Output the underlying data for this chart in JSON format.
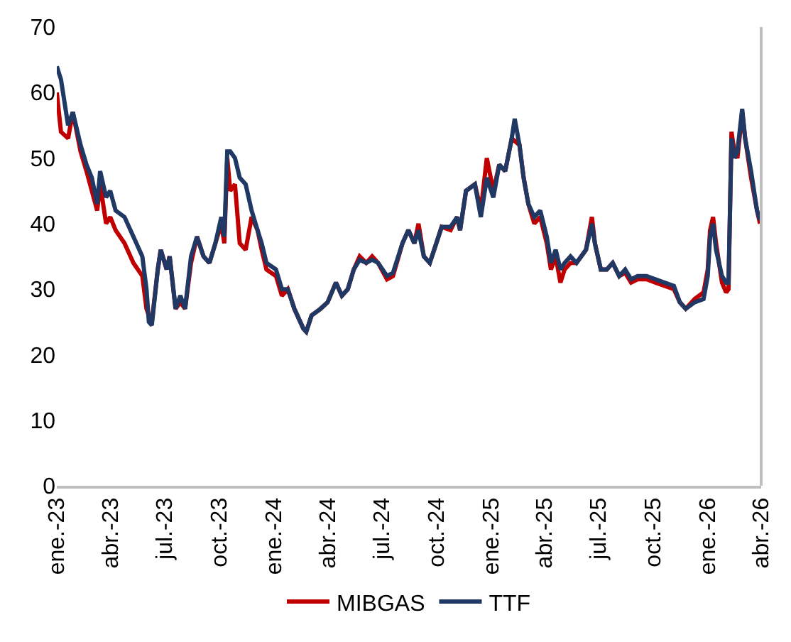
{
  "chart_data": {
    "type": "line",
    "x": [
      "2023-01-01",
      "2023-01-08",
      "2023-01-20",
      "2023-01-28",
      "2023-02-10",
      "2023-02-20",
      "2023-03-01",
      "2023-03-10",
      "2023-03-15",
      "2023-03-25",
      "2023-04-01",
      "2023-04-10",
      "2023-04-25",
      "2023-05-10",
      "2023-05-25",
      "2023-06-01",
      "2023-06-05",
      "2023-06-10",
      "2023-06-20",
      "2023-06-25",
      "2023-07-05",
      "2023-07-10",
      "2023-07-20",
      "2023-07-28",
      "2023-08-05",
      "2023-08-15",
      "2023-08-25",
      "2023-09-05",
      "2023-09-15",
      "2023-09-25",
      "2023-10-05",
      "2023-10-10",
      "2023-10-15",
      "2023-10-20",
      "2023-10-28",
      "2023-11-05",
      "2023-11-15",
      "2023-11-25",
      "2023-12-05",
      "2023-12-12",
      "2023-12-20",
      "2024-01-05",
      "2024-01-15",
      "2024-01-25",
      "2024-02-05",
      "2024-02-20",
      "2024-02-25",
      "2024-03-05",
      "2024-03-20",
      "2024-04-01",
      "2024-04-15",
      "2024-04-25",
      "2024-05-05",
      "2024-05-15",
      "2024-05-25",
      "2024-06-05",
      "2024-06-15",
      "2024-06-25",
      "2024-07-10",
      "2024-07-20",
      "2024-08-05",
      "2024-08-15",
      "2024-08-25",
      "2024-09-01",
      "2024-09-10",
      "2024-09-20",
      "2024-10-01",
      "2024-10-10",
      "2024-10-25",
      "2024-11-05",
      "2024-11-10",
      "2024-11-20",
      "2024-12-05",
      "2024-12-15",
      "2024-12-25",
      "2025-01-05",
      "2025-01-15",
      "2025-01-25",
      "2025-02-05",
      "2025-02-10",
      "2025-02-18",
      "2025-02-25",
      "2025-03-05",
      "2025-03-15",
      "2025-03-25",
      "2025-04-05",
      "2025-04-12",
      "2025-04-20",
      "2025-04-28",
      "2025-05-05",
      "2025-05-15",
      "2025-05-25",
      "2025-06-10",
      "2025-06-20",
      "2025-06-25",
      "2025-07-05",
      "2025-07-15",
      "2025-07-25",
      "2025-08-05",
      "2025-08-15",
      "2025-08-25",
      "2025-09-05",
      "2025-09-20",
      "2025-10-05",
      "2025-10-20",
      "2025-11-05",
      "2025-11-15",
      "2025-11-25",
      "2025-12-10",
      "2025-12-25",
      "2026-01-01",
      "2026-01-05",
      "2026-01-10",
      "2026-01-15",
      "2026-01-25",
      "2026-02-01",
      "2026-02-05",
      "2026-02-10",
      "2026-02-15",
      "2026-02-20",
      "2026-02-28",
      "2026-03-05",
      "2026-03-15",
      "2026-03-25",
      "2026-03-30"
    ],
    "series": [
      {
        "name": "MIBGAS",
        "color": "#c00000",
        "values": [
          60,
          54,
          53,
          57,
          51,
          48,
          45,
          42,
          46,
          40,
          41,
          39,
          37,
          34,
          32,
          27,
          26,
          25,
          33,
          36,
          33,
          35,
          27,
          28,
          27,
          34,
          38,
          35,
          34,
          37,
          40,
          37,
          50,
          45,
          46,
          37,
          36,
          41,
          39,
          36,
          33,
          32,
          29,
          30,
          27,
          24,
          23.5,
          26,
          27,
          28,
          31,
          29,
          30,
          33,
          35,
          34,
          35,
          34,
          31.5,
          32,
          37,
          39,
          37,
          40,
          35,
          34,
          37,
          39.5,
          39,
          41,
          39,
          45,
          46,
          42,
          50,
          45,
          49,
          48,
          53,
          null,
          52,
          47,
          43,
          40,
          41,
          37,
          33,
          35,
          31,
          33,
          34,
          34,
          36,
          41,
          37,
          33,
          33,
          34,
          32,
          32.5,
          31,
          31.5,
          31.5,
          31,
          30.5,
          30,
          28,
          27,
          28.5,
          29.5,
          33,
          39,
          41,
          37,
          31,
          29.5,
          30,
          54,
          51,
          50,
          57,
          53,
          47,
          42,
          40
        ]
      },
      {
        "name": "TTF",
        "color": "#203864",
        "values": [
          64,
          62,
          55,
          57,
          52,
          49,
          47,
          43,
          48,
          44,
          45,
          42,
          41,
          38,
          35,
          30,
          25,
          24.5,
          33,
          36,
          33,
          35,
          27,
          29,
          27,
          35,
          38,
          35,
          34,
          37,
          41,
          38,
          51,
          51,
          50,
          47,
          46,
          42,
          39,
          37,
          34,
          33,
          30,
          30,
          27,
          24,
          23.5,
          26,
          27,
          28,
          31,
          29,
          30,
          33,
          34.5,
          34,
          34.5,
          34,
          32,
          32.5,
          37,
          39,
          37,
          39,
          35,
          34,
          37,
          39.5,
          39.5,
          41,
          39,
          45,
          46,
          41,
          47,
          44,
          49,
          48,
          53,
          56,
          52,
          47,
          43,
          41,
          42,
          38,
          34,
          36,
          33,
          34,
          35,
          34,
          36,
          40,
          37,
          33,
          33,
          34,
          32,
          33,
          31.5,
          32,
          32,
          31.5,
          31,
          30.5,
          28,
          27,
          28,
          28.5,
          32,
          38,
          40,
          36,
          32,
          31,
          31,
          53,
          50,
          51,
          57.5,
          53,
          48,
          42,
          40.5
        ]
      }
    ],
    "xlim": [
      "2023-01-01",
      "2026-04-01"
    ],
    "xticks": [
      {
        "value": "2023-01-01",
        "label": "ene.-23"
      },
      {
        "value": "2023-04-01",
        "label": "abr.-23"
      },
      {
        "value": "2023-07-01",
        "label": "jul.-23"
      },
      {
        "value": "2023-10-01",
        "label": "oct.-23"
      },
      {
        "value": "2024-01-01",
        "label": "ene.-24"
      },
      {
        "value": "2024-04-01",
        "label": "abr.-24"
      },
      {
        "value": "2024-07-01",
        "label": "jul.-24"
      },
      {
        "value": "2024-10-01",
        "label": "oct.-24"
      },
      {
        "value": "2025-01-01",
        "label": "ene.-25"
      },
      {
        "value": "2025-04-01",
        "label": "abr.-25"
      },
      {
        "value": "2025-07-01",
        "label": "jul.-25"
      },
      {
        "value": "2025-10-01",
        "label": "oct.-25"
      },
      {
        "value": "2026-01-01",
        "label": "ene.-26"
      },
      {
        "value": "2026-04-01",
        "label": "abr.-26"
      }
    ],
    "ylim": [
      0,
      70
    ],
    "yticks": [
      0,
      10,
      20,
      30,
      40,
      50,
      60,
      70
    ],
    "grid": false,
    "legend": "bottom",
    "line_style": "solid",
    "marker": "none"
  }
}
